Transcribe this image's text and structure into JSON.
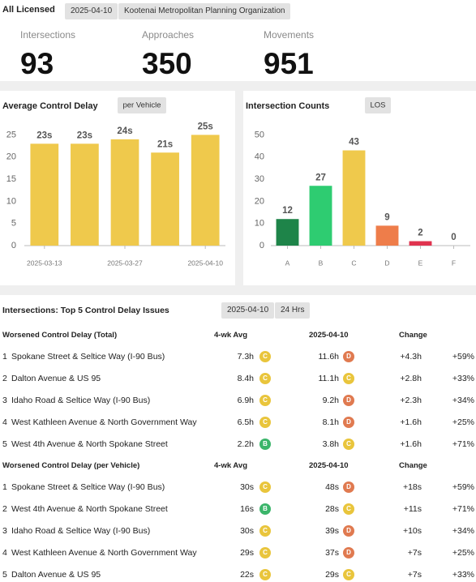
{
  "header": {
    "title": "All Licensed",
    "date": "2025-04-10",
    "org": "Kootenai Metropolitan Planning Organization"
  },
  "kpis": [
    {
      "label": "Intersections",
      "value": 93
    },
    {
      "label": "Approaches",
      "value": 350
    },
    {
      "label": "Movements",
      "value": 951
    }
  ],
  "chart_data": [
    {
      "type": "bar",
      "title": "Average Control Delay",
      "badge": "per Vehicle",
      "categories": [
        "2025-03-13",
        null,
        "2025-03-27",
        null,
        "2025-04-10"
      ],
      "values": [
        23,
        23,
        24,
        21,
        25
      ],
      "value_labels": [
        "23s",
        "23s",
        "24s",
        "21s",
        "25s"
      ],
      "color": "#efc94c",
      "ylim": [
        0,
        28
      ],
      "yticks": [
        0,
        5,
        10,
        15,
        20,
        25
      ]
    },
    {
      "type": "bar",
      "title": "Intersection Counts",
      "badge": "LOS",
      "categories": [
        "A",
        "B",
        "C",
        "D",
        "E",
        "F"
      ],
      "values": [
        12,
        27,
        43,
        9,
        2,
        0
      ],
      "colors": [
        "#1e8449",
        "#2ecc71",
        "#efc94c",
        "#ee7d4a",
        "#e0334f",
        "#999999"
      ],
      "ylim": [
        0,
        56
      ],
      "yticks": [
        0,
        10,
        20,
        30,
        40,
        50
      ]
    }
  ],
  "table": {
    "title": "Intersections: Top 5 Control Delay Issues",
    "date": "2025-04-10",
    "period": "24 Hrs",
    "los_colors": {
      "B": "#3bb56a",
      "C": "#e9c53c",
      "D": "#e07a50"
    },
    "sections": [
      {
        "header": [
          "Worsened Control Delay (Total)",
          "4-wk Avg",
          "2025-04-10",
          "Change"
        ],
        "rows": [
          [
            1,
            "Spokane Street & Seltice Way (I-90 Bus)",
            "7.3h",
            "C",
            "11.6h",
            "D",
            "+4.3h",
            "+59%"
          ],
          [
            2,
            "Dalton Avenue & US 95",
            "8.4h",
            "C",
            "11.1h",
            "C",
            "+2.8h",
            "+33%"
          ],
          [
            3,
            "Idaho Road & Seltice Way (I-90 Bus)",
            "6.9h",
            "C",
            "9.2h",
            "D",
            "+2.3h",
            "+34%"
          ],
          [
            4,
            "West Kathleen Avenue & North Government Way",
            "6.5h",
            "C",
            "8.1h",
            "D",
            "+1.6h",
            "+25%"
          ],
          [
            5,
            "West 4th Avenue & North Spokane Street",
            "2.2h",
            "B",
            "3.8h",
            "C",
            "+1.6h",
            "+71%"
          ]
        ]
      },
      {
        "header": [
          "Worsened Control Delay (per Vehicle)",
          "4-wk Avg",
          "2025-04-10",
          "Change"
        ],
        "rows": [
          [
            1,
            "Spokane Street & Seltice Way (I-90 Bus)",
            "30s",
            "C",
            "48s",
            "D",
            "+18s",
            "+59%"
          ],
          [
            2,
            "West 4th Avenue & North Spokane Street",
            "16s",
            "B",
            "28s",
            "C",
            "+11s",
            "+71%"
          ],
          [
            3,
            "Idaho Road & Seltice Way (I-90 Bus)",
            "30s",
            "C",
            "39s",
            "D",
            "+10s",
            "+34%"
          ],
          [
            4,
            "West Kathleen Avenue & North Government Way",
            "29s",
            "C",
            "37s",
            "D",
            "+7s",
            "+25%"
          ],
          [
            5,
            "Dalton Avenue & US 95",
            "22s",
            "C",
            "29s",
            "C",
            "+7s",
            "+33%"
          ]
        ]
      }
    ]
  }
}
